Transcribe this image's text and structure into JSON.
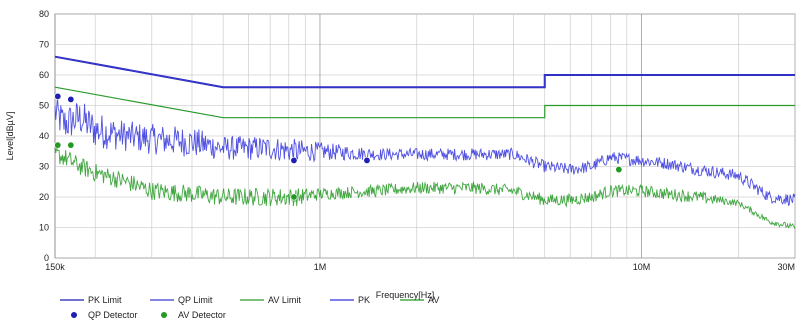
{
  "chart_data": {
    "type": "line",
    "xlabel": "Frequency[Hz]",
    "ylabel": "Level[dBµV]",
    "xscale": "log",
    "xlim": [
      150000,
      30000000
    ],
    "ylim": [
      0,
      80
    ],
    "grid": true,
    "x_ticks": [
      {
        "value": 150000,
        "label": "150k"
      },
      {
        "value": 1000000,
        "label": "1M"
      },
      {
        "value": 10000000,
        "label": "10M"
      },
      {
        "value": 30000000,
        "label": "30M"
      }
    ],
    "y_ticks": [
      {
        "value": 0,
        "label": "0"
      },
      {
        "value": 10,
        "label": "10"
      },
      {
        "value": 20,
        "label": "20"
      },
      {
        "value": 30,
        "label": "30"
      },
      {
        "value": 40,
        "label": "40"
      },
      {
        "value": 50,
        "label": "50"
      },
      {
        "value": 60,
        "label": "60"
      },
      {
        "value": 70,
        "label": "70"
      },
      {
        "value": 80,
        "label": "80"
      }
    ],
    "legend_placement": "bottom",
    "series": [
      {
        "name": "PK Limit",
        "color": "#1f1fb4",
        "style": "line",
        "width": 2,
        "x": [
          150000,
          500000,
          5000000,
          5000000,
          30000000
        ],
        "y": [
          66,
          56,
          56,
          60,
          60
        ]
      },
      {
        "name": "QP Limit",
        "color": "#3a3ad0",
        "style": "line",
        "width": 1.2,
        "x": [
          150000,
          500000,
          5000000,
          5000000,
          30000000
        ],
        "y": [
          66,
          56,
          56,
          60,
          60
        ]
      },
      {
        "name": "AV Limit",
        "color": "#2a9a2a",
        "style": "line",
        "width": 1.2,
        "x": [
          150000,
          500000,
          5000000,
          5000000,
          30000000
        ],
        "y": [
          56,
          46,
          46,
          50,
          50
        ]
      },
      {
        "name": "PK",
        "color": "#3333dd",
        "style": "noisy",
        "width": 0.9,
        "x": [
          150000,
          160000,
          180000,
          200000,
          250000,
          300000,
          400000,
          500000,
          700000,
          850000,
          1000000,
          1500000,
          2000000,
          3000000,
          4000000,
          5000000,
          6000000,
          7000000,
          8000000,
          10000000,
          12000000,
          15000000,
          20000000,
          25000000,
          30000000
        ],
        "y": [
          48,
          44,
          46,
          42,
          40,
          39,
          38,
          36,
          36,
          35,
          35,
          34,
          34,
          34,
          34,
          30,
          29,
          30,
          33,
          32,
          31,
          29,
          27,
          20,
          19
        ],
        "noise": [
          6,
          6,
          6,
          6,
          5,
          5,
          5,
          4,
          4,
          4,
          3,
          2,
          2,
          2,
          2,
          2,
          2,
          2,
          2,
          2,
          2,
          2,
          2,
          2,
          2
        ]
      },
      {
        "name": "AV",
        "color": "#229922",
        "style": "noisy",
        "width": 0.9,
        "x": [
          150000,
          160000,
          180000,
          200000,
          250000,
          300000,
          400000,
          500000,
          700000,
          850000,
          1000000,
          1500000,
          2000000,
          3000000,
          4000000,
          5000000,
          6000000,
          7000000,
          8000000,
          10000000,
          12000000,
          15000000,
          20000000,
          25000000,
          30000000
        ],
        "y": [
          34,
          33,
          30,
          28,
          25,
          22,
          21,
          20,
          20,
          20,
          21,
          22,
          23,
          23,
          22,
          19,
          19,
          20,
          22,
          22,
          21,
          20,
          18,
          12,
          10
        ],
        "noise": [
          3,
          3,
          3,
          3,
          3,
          3,
          3,
          3,
          3,
          3,
          2,
          2,
          2,
          2,
          2,
          2,
          2,
          2,
          2,
          2,
          2,
          2,
          1,
          1,
          1
        ]
      },
      {
        "name": "QP Detector",
        "color": "#1f1fb4",
        "style": "marker",
        "x": [
          153000,
          168000,
          830000,
          1400000
        ],
        "y": [
          53,
          52,
          32,
          32
        ]
      },
      {
        "name": "AV Detector",
        "color": "#229922",
        "style": "marker",
        "x": [
          153000,
          168000,
          830000,
          8500000
        ],
        "y": [
          37,
          37,
          20,
          29
        ]
      }
    ]
  }
}
